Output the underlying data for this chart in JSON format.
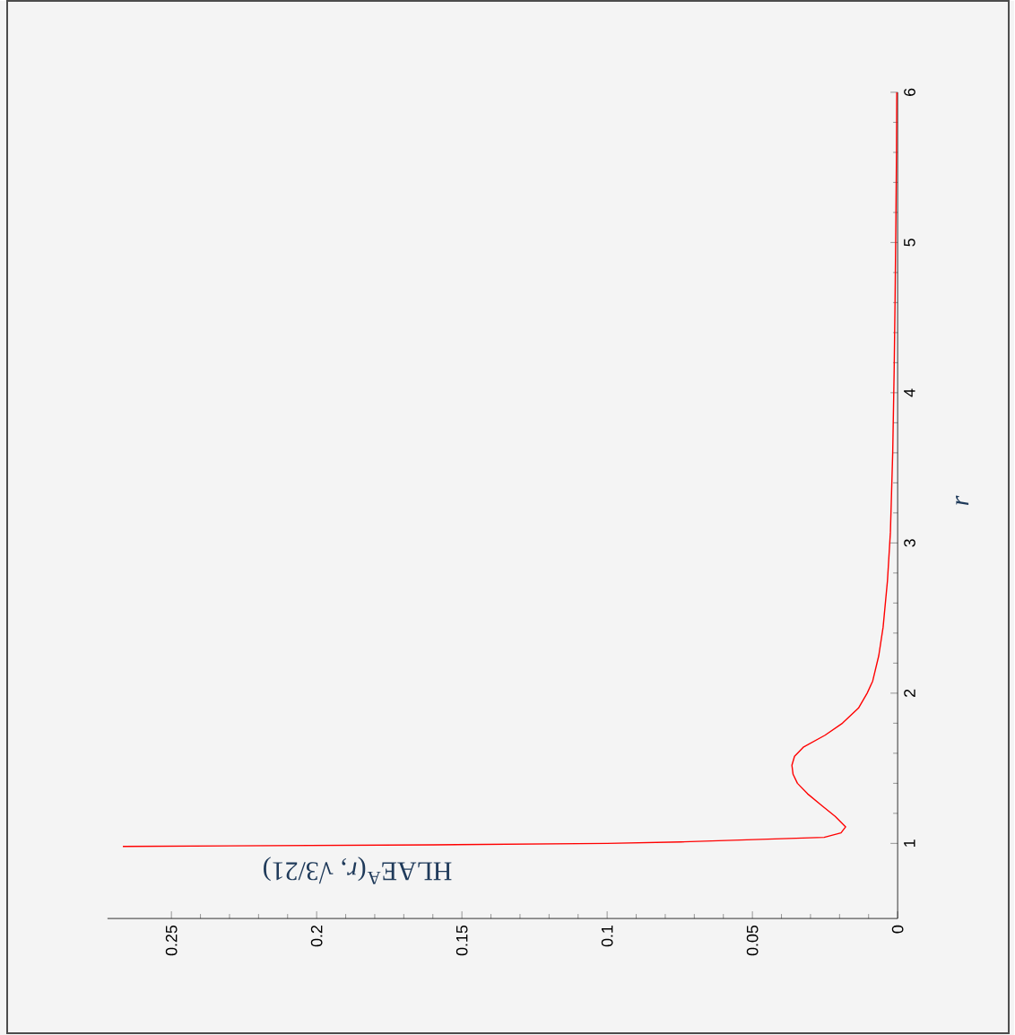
{
  "chart_data": {
    "type": "line",
    "xlabel": "HLAE$^{A}$(*r*, √3/21)",
    "ylabel": "*r*",
    "values": [
      0.98,
      0.99,
      1.0,
      1.01,
      1.04,
      1.07,
      1.11,
      1.18,
      1.25,
      1.33,
      1.4,
      1.46,
      1.52,
      1.58,
      1.64,
      1.72,
      1.8,
      1.9,
      2.0,
      2.08,
      2.25,
      2.44,
      2.75,
      3.07,
      3.6,
      4.15,
      4.6,
      5.16,
      5.6,
      6.0
    ],
    "x": [
      0.2667,
      0.16,
      0.1,
      0.0747,
      0.0253,
      0.0195,
      0.0179,
      0.0215,
      0.026,
      0.031,
      0.0345,
      0.036,
      0.0364,
      0.0355,
      0.0325,
      0.025,
      0.019,
      0.0135,
      0.0105,
      0.0086,
      0.0065,
      0.005,
      0.0035,
      0.0025,
      0.0017,
      0.0012,
      0.0009,
      0.0006,
      0.0004,
      0.0003
    ],
    "color": "#ff0000",
    "ylim": [
      0.5,
      6
    ],
    "xlim": [
      0.272,
      0
    ],
    "yticks": [
      1,
      2,
      3,
      4,
      5,
      6
    ],
    "xticks": [
      0,
      0.05,
      0.1,
      0.15,
      0.2,
      0.25
    ],
    "grid": false,
    "marker": "none",
    "line_style": "solid"
  }
}
